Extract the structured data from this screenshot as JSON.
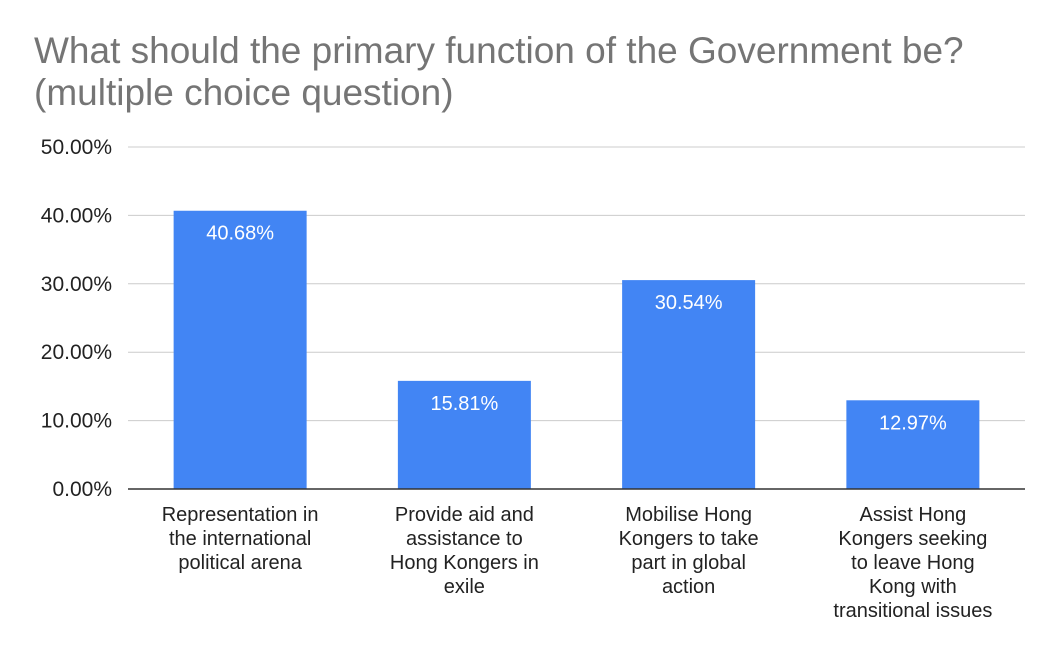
{
  "chart_data": {
    "type": "bar",
    "title": "What should the primary function of the Government be? (multiple choice question)",
    "categories": [
      [
        "Representation in",
        "the international",
        "political arena"
      ],
      [
        "Provide aid and",
        "assistance to",
        "Hong Kongers in",
        "exile"
      ],
      [
        "Mobilise Hong",
        "Kongers to take",
        "part in global",
        "action"
      ],
      [
        "Assist Hong",
        "Kongers seeking",
        "to leave Hong",
        "Kong with",
        "transitional issues"
      ]
    ],
    "values": [
      40.68,
      15.81,
      30.54,
      12.97
    ],
    "data_labels": [
      "40.68%",
      "15.81%",
      "30.54%",
      "12.97%"
    ],
    "yticks": [
      "0.00%",
      "10.00%",
      "20.00%",
      "30.00%",
      "40.00%",
      "50.00%"
    ],
    "ylim": [
      0,
      50
    ],
    "xlabel": "",
    "ylabel": "",
    "grid": true,
    "legend": "none",
    "colors": {
      "bar": "#4285f4",
      "grid": "#cccccc",
      "axis": "#333333",
      "title": "#757575"
    }
  }
}
